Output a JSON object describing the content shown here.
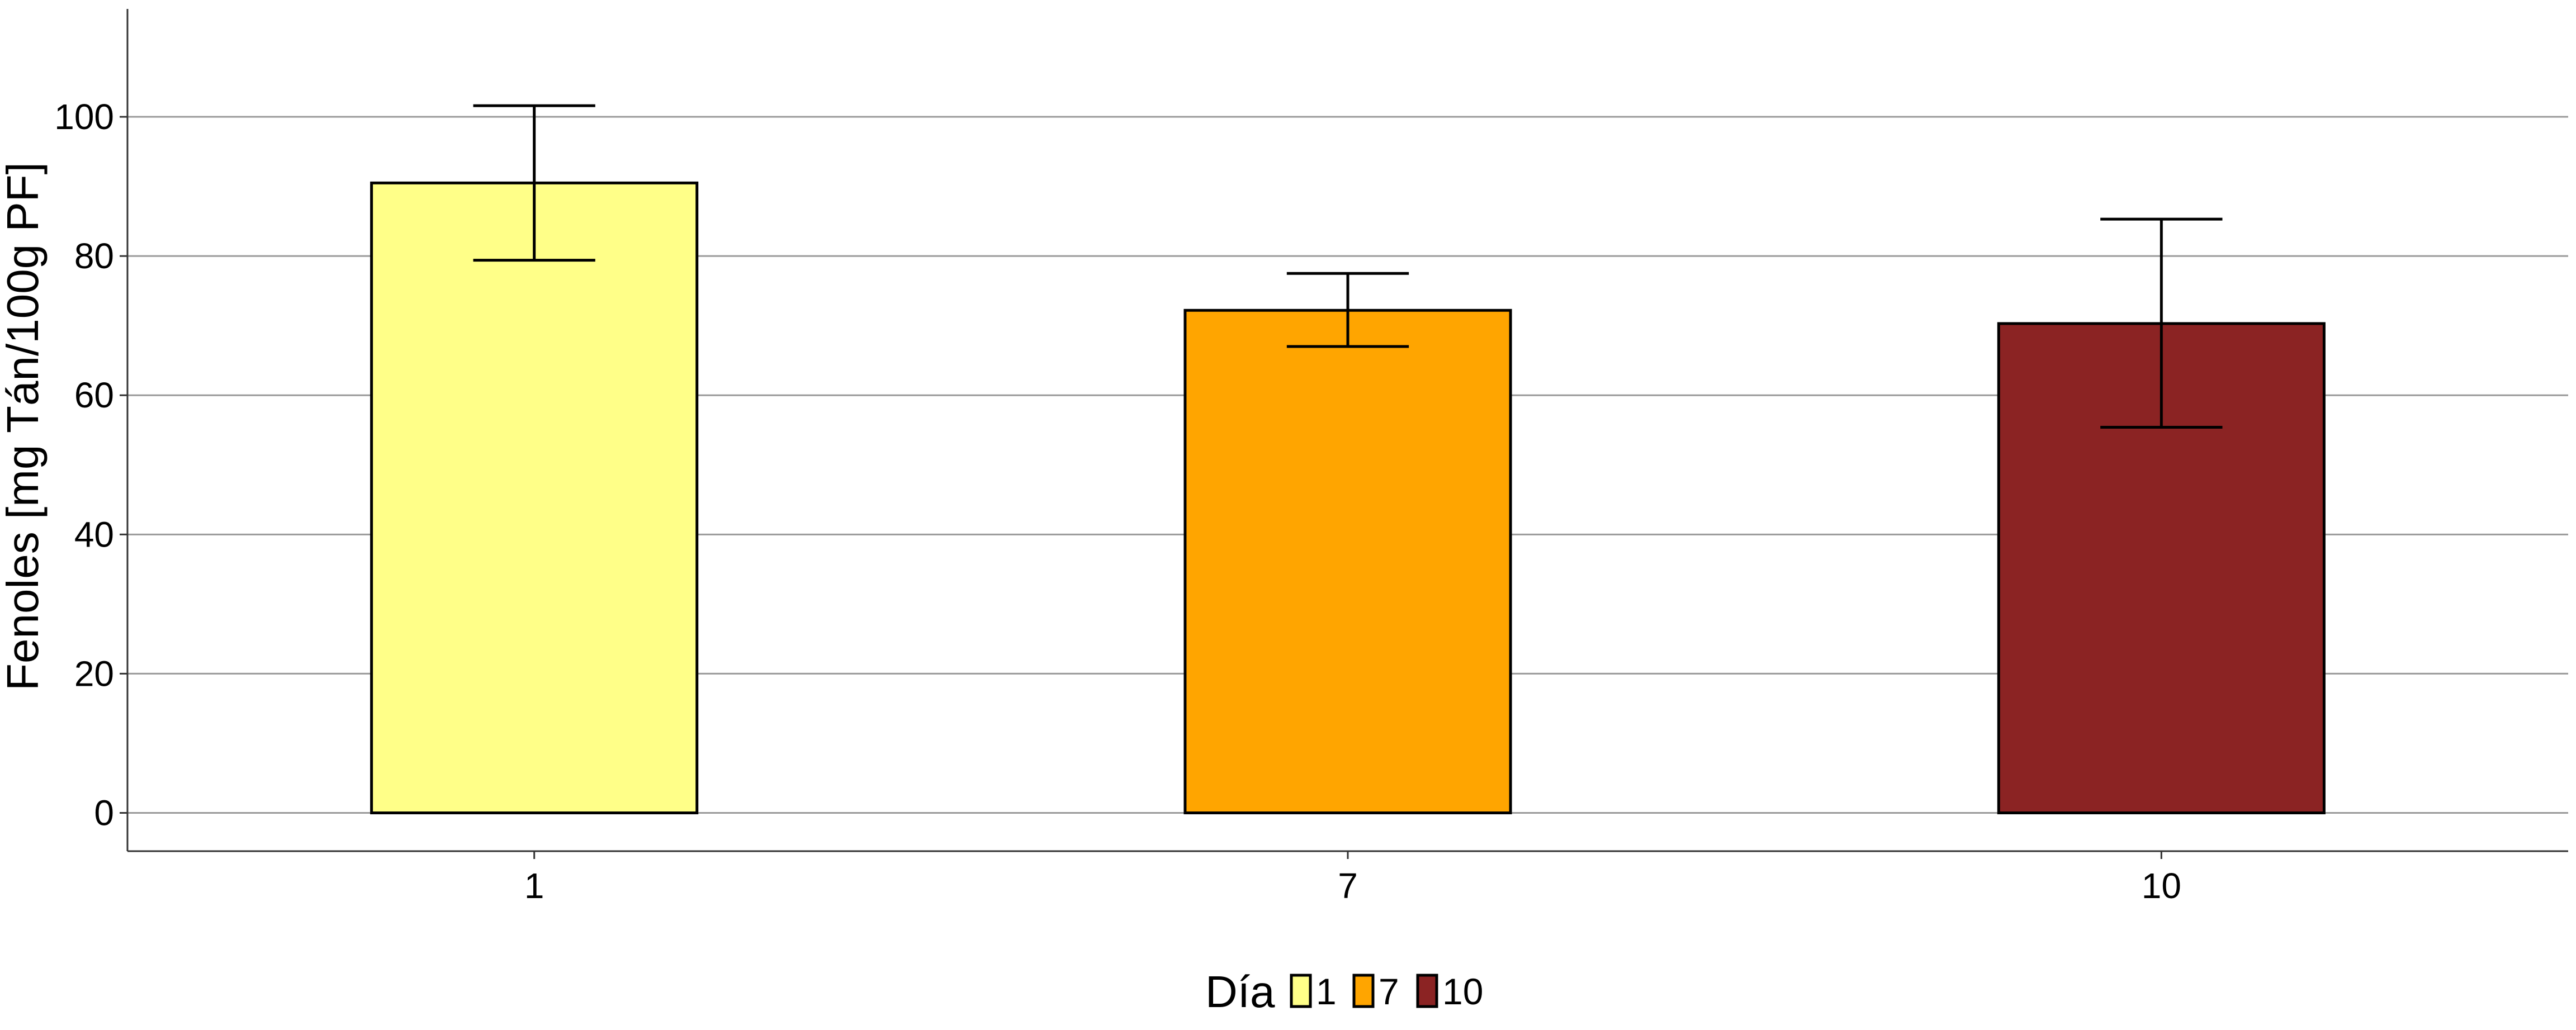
{
  "chart_data": {
    "type": "bar",
    "title": "",
    "xlabel": "",
    "ylabel": "Fenoles [mg Tán/100g PF]",
    "categories": [
      "1",
      "7",
      "10"
    ],
    "values": [
      90.5,
      72.2,
      70.3
    ],
    "error_low": [
      79.4,
      67.0,
      55.4
    ],
    "error_high": [
      101.6,
      77.5,
      85.3
    ],
    "colors": [
      "#FFFF88",
      "#FFA500",
      "#8B2323"
    ],
    "ylim": [
      -5.5,
      115.5
    ],
    "yticks": [
      0,
      20,
      40,
      60,
      80,
      100
    ],
    "ytick_labels": [
      "0",
      "20",
      "40",
      "60",
      "80",
      "100"
    ],
    "grid": "horizontal",
    "legend": {
      "title": "Día",
      "position": "bottom",
      "entries": [
        "1",
        "7",
        "10"
      ]
    }
  }
}
